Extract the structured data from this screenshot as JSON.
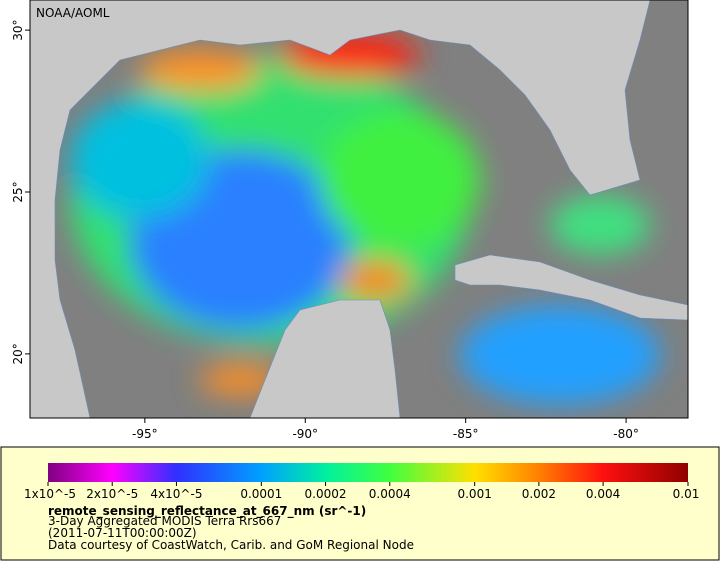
{
  "map": {
    "credit": "NOAA/AOML",
    "xlim": [
      -98.58,
      -78.07
    ],
    "ylim": [
      18.02,
      30.93
    ],
    "xticks": [
      {
        "value": -95,
        "label": "-95°"
      },
      {
        "value": -90,
        "label": "-90°"
      },
      {
        "value": -85,
        "label": "-85°"
      },
      {
        "value": -80,
        "label": "-80°"
      }
    ],
    "yticks": [
      {
        "value": 20,
        "label": "20°"
      },
      {
        "value": 25,
        "label": "25°"
      },
      {
        "value": 30,
        "label": "30°"
      }
    ]
  },
  "colorbar": {
    "lim": [
      1e-05,
      0.01
    ],
    "log": true,
    "ticks": [
      {
        "value": 1e-05,
        "label": "1x10^-5"
      },
      {
        "value": 2e-05,
        "label": "2x10^-5"
      },
      {
        "value": 4e-05,
        "label": "4x10^-5"
      },
      0.0001,
      0.0002,
      0.0004,
      0.001,
      0.002,
      0.004,
      0.01
    ],
    "colors": [
      "#800080",
      "#ff00ff",
      "#3030ff",
      "#00a0ff",
      "#00f0a0",
      "#40ff40",
      "#ffe000",
      "#ff8000",
      "#ff1010",
      "#900000"
    ]
  },
  "legend": {
    "variable": "remote_sensing_reflectance_at_667_nm (sr^-1)",
    "lines": [
      "3-Day Aggregated MODIS Terra Rrs667",
      "(2011-07-11T00:00:00Z)",
      "Data courtesy of CoastWatch, Carib. and GoM Regional Node"
    ]
  }
}
